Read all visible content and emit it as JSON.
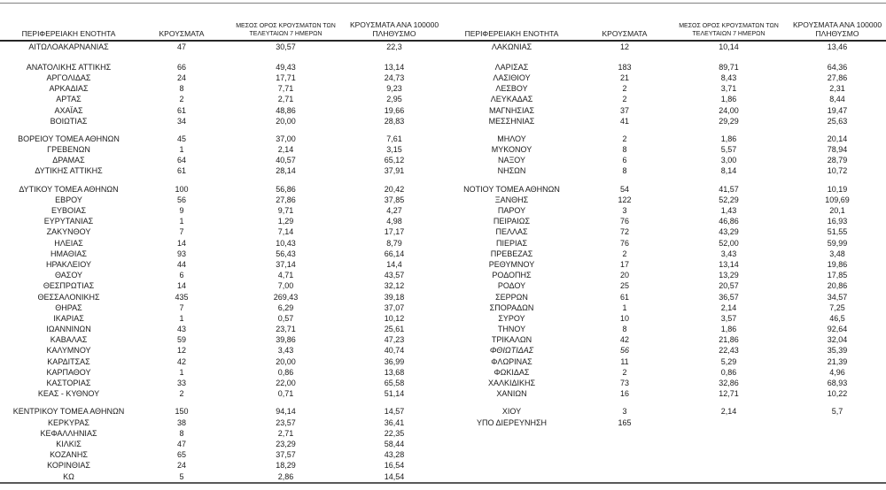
{
  "colors": {
    "text": "#1a1a1a",
    "rule_top": "#808080",
    "rule_header": "#262626",
    "rule_bottom": "#595959",
    "background": "#ffffff"
  },
  "header": {
    "region": "ΠΕΡΙΦΕΡΕΙΑΚΗ ΕΝΟΤΗΤΑ",
    "cases": "ΚΡΟΥΣΜΑΤΑ",
    "avg_line1": "ΜΕΣΟΣ ΟΡΟΣ ΚΡΟΥΣΜΑΤΩΝ ΤΩΝ",
    "avg_line2": "ΤΕΛΕΥΤΑΙΩΝ 7 ΗΜΕΡΩΝ",
    "per100k_line1": "ΚΡΟΥΣΜΑΤΑ ΑΝΑ 100000",
    "per100k_line2": "ΠΛΗΘΥΣΜΟ"
  },
  "left_table": {
    "groups": [
      [
        {
          "name": "ΑΙΤΩΛΟΑΚΑΡΝΑΝΙΑΣ",
          "cases": "47",
          "avg7": "30,57",
          "per100k": "22,3"
        }
      ],
      [
        {
          "name": "ΑΝΑΤΟΛΙΚΗΣ ΑΤΤΙΚΗΣ",
          "cases": "66",
          "avg7": "49,43",
          "per100k": "13,14"
        },
        {
          "name": "ΑΡΓΟΛΙΔΑΣ",
          "cases": "24",
          "avg7": "17,71",
          "per100k": "24,73"
        },
        {
          "name": "ΑΡΚΑΔΙΑΣ",
          "cases": "8",
          "avg7": "7,71",
          "per100k": "9,23"
        },
        {
          "name": "ΑΡΤΑΣ",
          "cases": "2",
          "avg7": "2,71",
          "per100k": "2,95"
        },
        {
          "name": "ΑΧΑΪΑΣ",
          "cases": "61",
          "avg7": "48,86",
          "per100k": "19,66"
        },
        {
          "name": "ΒΟΙΩΤΙΑΣ",
          "cases": "34",
          "avg7": "20,00",
          "per100k": "28,83"
        }
      ],
      [
        {
          "name": "ΒΟΡΕΙΟΥ ΤΟΜΕΑ ΑΘΗΝΩΝ",
          "cases": "45",
          "avg7": "37,00",
          "per100k": "7,61"
        },
        {
          "name": "ΓΡΕΒΕΝΩΝ",
          "cases": "1",
          "avg7": "2,14",
          "per100k": "3,15"
        },
        {
          "name": "ΔΡΑΜΑΣ",
          "cases": "64",
          "avg7": "40,57",
          "per100k": "65,12"
        },
        {
          "name": "ΔΥΤΙΚΗΣ ΑΤΤΙΚΗΣ",
          "cases": "61",
          "avg7": "28,14",
          "per100k": "37,91"
        }
      ],
      [
        {
          "name": "ΔΥΤΙΚΟΥ ΤΟΜΕΑ ΑΘΗΝΩΝ",
          "cases": "100",
          "avg7": "56,86",
          "per100k": "20,42"
        },
        {
          "name": "ΕΒΡΟΥ",
          "cases": "56",
          "avg7": "27,86",
          "per100k": "37,85"
        },
        {
          "name": "ΕΥΒΟΙΑΣ",
          "cases": "9",
          "avg7": "9,71",
          "per100k": "4,27"
        },
        {
          "name": "ΕΥΡΥΤΑΝΙΑΣ",
          "cases": "1",
          "avg7": "1,29",
          "per100k": "4,98"
        },
        {
          "name": "ΖΑΚΥΝΘΟΥ",
          "cases": "7",
          "avg7": "7,14",
          "per100k": "17,17"
        },
        {
          "name": "ΗΛΕΙΑΣ",
          "cases": "14",
          "avg7": "10,43",
          "per100k": "8,79"
        },
        {
          "name": "ΗΜΑΘΙΑΣ",
          "cases": "93",
          "avg7": "56,43",
          "per100k": "66,14"
        },
        {
          "name": "ΗΡΑΚΛΕΙΟΥ",
          "cases": "44",
          "avg7": "37,14",
          "per100k": "14,4"
        },
        {
          "name": "ΘΑΣΟΥ",
          "cases": "6",
          "avg7": "4,71",
          "per100k": "43,57"
        },
        {
          "name": "ΘΕΣΠΡΩΤΙΑΣ",
          "cases": "14",
          "avg7": "7,00",
          "per100k": "32,12"
        },
        {
          "name": "ΘΕΣΣΑΛΟΝΙΚΗΣ",
          "cases": "435",
          "avg7": "269,43",
          "per100k": "39,18"
        },
        {
          "name": "ΘΗΡΑΣ",
          "cases": "7",
          "avg7": "6,29",
          "per100k": "37,07"
        },
        {
          "name": "ΙΚΑΡΙΑΣ",
          "cases": "1",
          "avg7": "0,57",
          "per100k": "10,12"
        },
        {
          "name": "ΙΩΑΝΝΙΝΩΝ",
          "cases": "43",
          "avg7": "23,71",
          "per100k": "25,61"
        },
        {
          "name": "ΚΑΒΑΛΑΣ",
          "cases": "59",
          "avg7": "39,86",
          "per100k": "47,23"
        },
        {
          "name": "ΚΑΛΥΜΝΟΥ",
          "cases": "12",
          "avg7": "3,43",
          "per100k": "40,74"
        },
        {
          "name": "ΚΑΡΔΙΤΣΑΣ",
          "cases": "42",
          "avg7": "20,00",
          "per100k": "36,99"
        },
        {
          "name": "ΚΑΡΠΑΘΟΥ",
          "cases": "1",
          "avg7": "0,86",
          "per100k": "13,68"
        },
        {
          "name": "ΚΑΣΤΟΡΙΑΣ",
          "cases": "33",
          "avg7": "22,00",
          "per100k": "65,58"
        },
        {
          "name": "ΚΕΑΣ - ΚΥΘΝΟΥ",
          "cases": "2",
          "avg7": "0,71",
          "per100k": "51,14"
        }
      ],
      [
        {
          "name": "ΚΕΝΤΡΙΚΟΥ ΤΟΜΕΑ ΑΘΗΝΩΝ",
          "cases": "150",
          "avg7": "94,14",
          "per100k": "14,57"
        },
        {
          "name": "ΚΕΡΚΥΡΑΣ",
          "cases": "38",
          "avg7": "23,57",
          "per100k": "36,41"
        },
        {
          "name": "ΚΕΦΑΛΛΗΝΙΑΣ",
          "cases": "8",
          "avg7": "2,71",
          "per100k": "22,35"
        },
        {
          "name": "ΚΙΛΚΙΣ",
          "cases": "47",
          "avg7": "23,29",
          "per100k": "58,44"
        },
        {
          "name": "ΚΟΖΑΝΗΣ",
          "cases": "65",
          "avg7": "37,57",
          "per100k": "43,28"
        },
        {
          "name": "ΚΟΡΙΝΘΙΑΣ",
          "cases": "24",
          "avg7": "18,29",
          "per100k": "16,54"
        },
        {
          "name": "ΚΩ",
          "cases": "5",
          "avg7": "2,86",
          "per100k": "14,54"
        }
      ]
    ]
  },
  "right_table": {
    "groups": [
      [
        {
          "name": "ΛΑΚΩΝΙΑΣ",
          "cases": "12",
          "avg7": "10,14",
          "per100k": "13,46"
        }
      ],
      [
        {
          "name": "ΛΑΡΙΣΑΣ",
          "cases": "183",
          "avg7": "89,71",
          "per100k": "64,36"
        },
        {
          "name": "ΛΑΣΙΘΙΟΥ",
          "cases": "21",
          "avg7": "8,43",
          "per100k": "27,86"
        },
        {
          "name": "ΛΕΣΒΟΥ",
          "cases": "2",
          "avg7": "3,71",
          "per100k": "2,31"
        },
        {
          "name": "ΛΕΥΚΑΔΑΣ",
          "cases": "2",
          "avg7": "1,86",
          "per100k": "8,44"
        },
        {
          "name": "ΜΑΓΝΗΣΙΑΣ",
          "cases": "37",
          "avg7": "24,00",
          "per100k": "19,47"
        },
        {
          "name": "ΜΕΣΣΗΝΙΑΣ",
          "cases": "41",
          "avg7": "29,29",
          "per100k": "25,63"
        }
      ],
      [
        {
          "name": "ΜΗΛΟΥ",
          "cases": "2",
          "avg7": "1,86",
          "per100k": "20,14"
        },
        {
          "name": "ΜΥΚΟΝΟΥ",
          "cases": "8",
          "avg7": "5,57",
          "per100k": "78,94"
        },
        {
          "name": "ΝΑΞΟΥ",
          "cases": "6",
          "avg7": "3,00",
          "per100k": "28,79"
        },
        {
          "name": "ΝΗΣΩΝ",
          "cases": "8",
          "avg7": "8,14",
          "per100k": "10,72"
        }
      ],
      [
        {
          "name": "ΝΟΤΙΟΥ ΤΟΜΕΑ ΑΘΗΝΩΝ",
          "cases": "54",
          "avg7": "41,57",
          "per100k": "10,19"
        },
        {
          "name": "ΞΑΝΘΗΣ",
          "cases": "122",
          "avg7": "52,29",
          "per100k": "109,69"
        },
        {
          "name": "ΠΑΡΟΥ",
          "cases": "3",
          "avg7": "1,43",
          "per100k": "20,1"
        },
        {
          "name": "ΠΕΙΡΑΙΩΣ",
          "cases": "76",
          "avg7": "46,86",
          "per100k": "16,93"
        },
        {
          "name": "ΠΕΛΛΑΣ",
          "cases": "72",
          "avg7": "43,29",
          "per100k": "51,55"
        },
        {
          "name": "ΠΙΕΡΙΑΣ",
          "cases": "76",
          "avg7": "52,00",
          "per100k": "59,99"
        },
        {
          "name": "ΠΡΕΒΕΖΑΣ",
          "cases": "2",
          "avg7": "3,43",
          "per100k": "3,48"
        },
        {
          "name": "ΡΕΘΥΜΝΟΥ",
          "cases": "17",
          "avg7": "13,14",
          "per100k": "19,86"
        },
        {
          "name": "ΡΟΔΟΠΗΣ",
          "cases": "20",
          "avg7": "13,29",
          "per100k": "17,85"
        },
        {
          "name": "ΡΟΔΟΥ",
          "cases": "25",
          "avg7": "20,57",
          "per100k": "20,86"
        },
        {
          "name": "ΣΕΡΡΩΝ",
          "cases": "61",
          "avg7": "36,57",
          "per100k": "34,57"
        },
        {
          "name": "ΣΠΟΡΑΔΩΝ",
          "cases": "1",
          "avg7": "2,14",
          "per100k": "7,25"
        },
        {
          "name": "ΣΥΡΟΥ",
          "cases": "10",
          "avg7": "3,57",
          "per100k": "46,5"
        },
        {
          "name": "ΤΗΝΟΥ",
          "cases": "8",
          "avg7": "1,86",
          "per100k": "92,64"
        },
        {
          "name": "ΤΡΙΚΑΛΩΝ",
          "cases": "42",
          "avg7": "21,86",
          "per100k": "32,04"
        },
        {
          "name": "ΦΘΙΩΤΙΔΑΣ",
          "cases": "56",
          "avg7": "22,43",
          "per100k": "35,39",
          "italic": true
        },
        {
          "name": "ΦΛΩΡΙΝΑΣ",
          "cases": "11",
          "avg7": "5,29",
          "per100k": "21,39"
        },
        {
          "name": "ΦΩΚΙΔΑΣ",
          "cases": "2",
          "avg7": "0,86",
          "per100k": "4,96"
        },
        {
          "name": "ΧΑΛΚΙΔΙΚΗΣ",
          "cases": "73",
          "avg7": "32,86",
          "per100k": "68,93"
        },
        {
          "name": "ΧΑΝΙΩΝ",
          "cases": "16",
          "avg7": "12,71",
          "per100k": "10,22"
        }
      ],
      [
        {
          "name": "ΧΙΟΥ",
          "cases": "3",
          "avg7": "2,14",
          "per100k": "5,7"
        },
        {
          "name": "ΥΠΟ ΔΙΕΡΕΥΝΗΣΗ",
          "cases": "165",
          "avg7": "",
          "per100k": ""
        }
      ]
    ]
  }
}
